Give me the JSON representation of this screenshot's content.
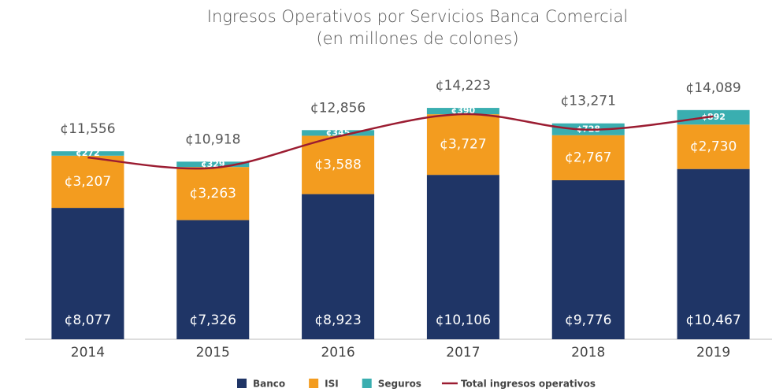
{
  "chart_data": {
    "type": "bar",
    "stacked": true,
    "title": "Ingresos Operativos por Servicios Banca Comercial",
    "subtitle": "(en millones de colones)",
    "categories": [
      "2014",
      "2015",
      "2016",
      "2017",
      "2018",
      "2019"
    ],
    "ylim": [
      0,
      15000
    ],
    "series": [
      {
        "name": "Banco",
        "color": "#1f3566",
        "values": [
          8077,
          7326,
          8923,
          10106,
          9776,
          10467
        ],
        "value_labels": [
          "¢8,077",
          "¢7,326",
          "¢8,923",
          "¢10,106",
          "¢9,776",
          "¢10,467"
        ]
      },
      {
        "name": "ISI",
        "color": "#f39c1f",
        "values": [
          3207,
          3263,
          3588,
          3727,
          2767,
          2730
        ],
        "value_labels": [
          "¢3,207",
          "¢3,263",
          "¢3,588",
          "¢3,727",
          "¢2,767",
          "¢2,730"
        ]
      },
      {
        "name": "Seguros",
        "color": "#3aaeb0",
        "values": [
          272,
          329,
          345,
          390,
          728,
          892
        ],
        "value_labels": [
          "¢272",
          "¢329",
          "¢345",
          "¢390",
          "¢728",
          "¢892"
        ]
      },
      {
        "name": "Total ingresos operativos",
        "type": "line",
        "color": "#9b1c31",
        "values": [
          11556,
          10918,
          12856,
          14223,
          13271,
          14089
        ],
        "value_labels": [
          "¢11,556",
          "¢10,918",
          "¢12,856",
          "¢14,223",
          "¢13,271",
          "¢14,089"
        ]
      }
    ]
  }
}
